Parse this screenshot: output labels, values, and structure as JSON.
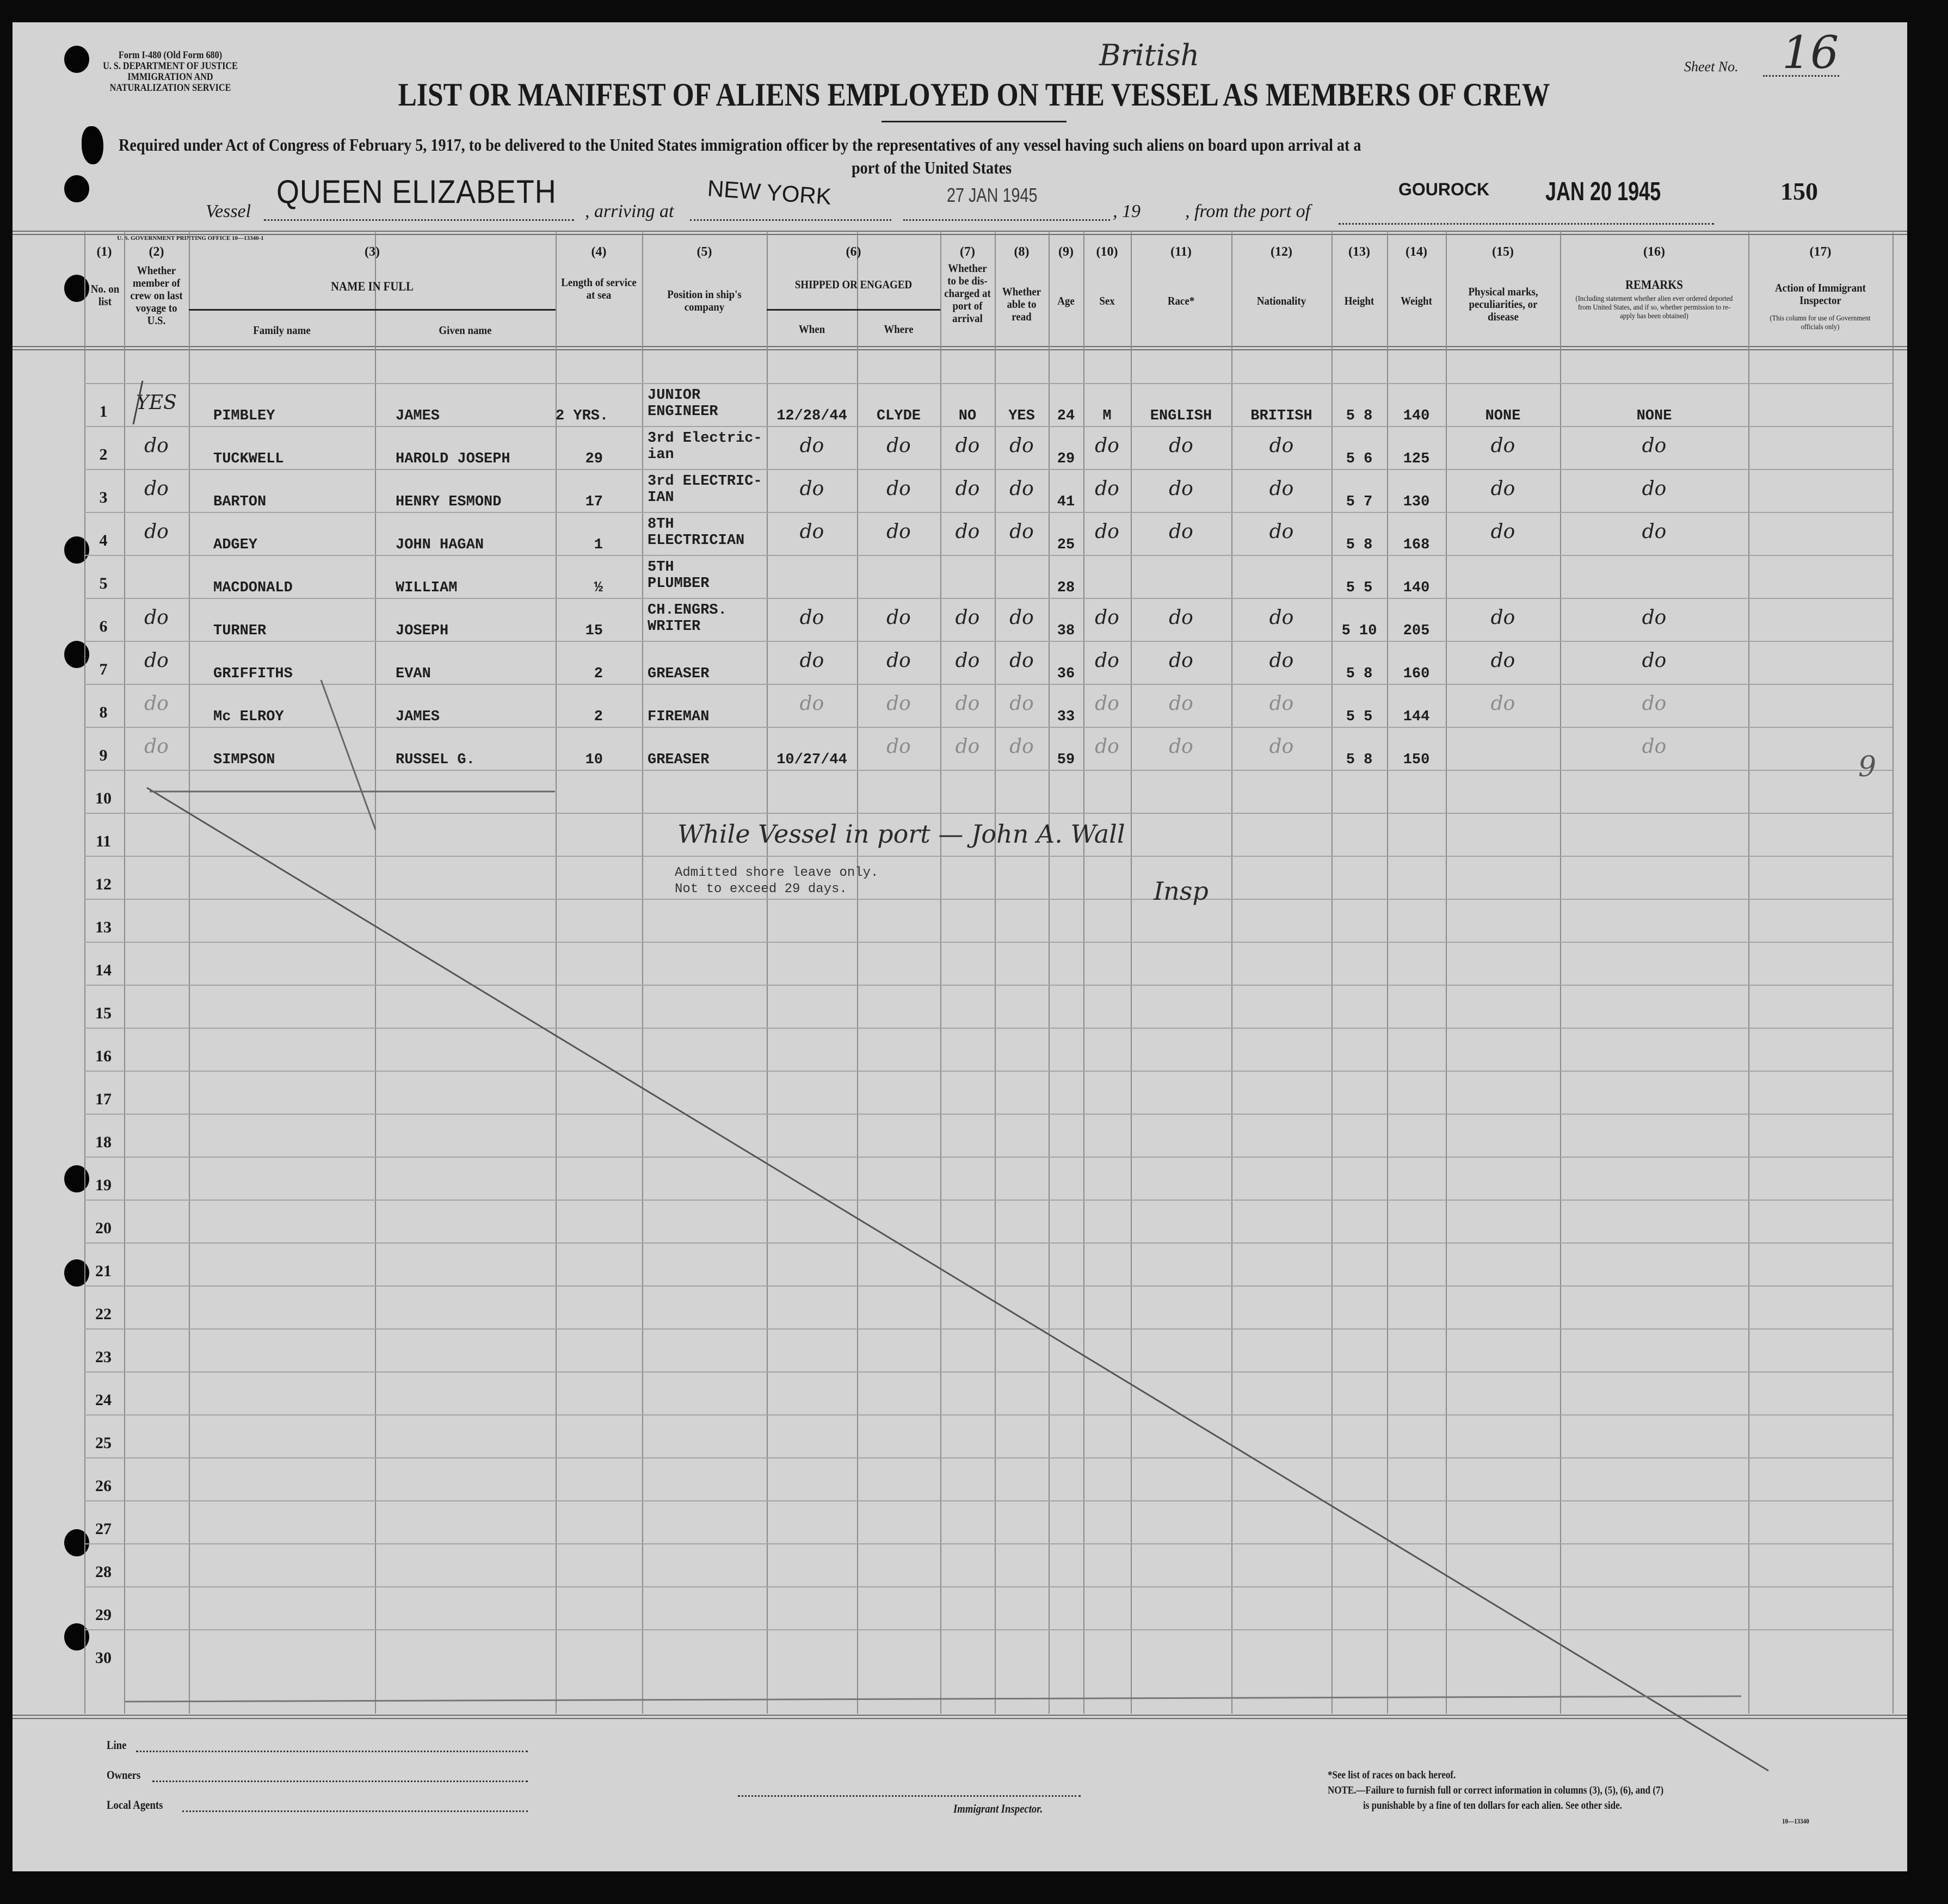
{
  "form": {
    "form_id": "Form I-480 (Old Form 680)",
    "department": "U. S. DEPARTMENT OF JUSTICE",
    "service": "IMMIGRATION AND NATURALIZATION SERVICE",
    "title": "LIST OR MANIFEST OF ALIENS EMPLOYED ON THE VESSEL AS MEMBERS OF CREW",
    "handwritten_flag": "British",
    "sheet_label": "Sheet No.",
    "sheet_no": "16",
    "subtitle_line1": "Required under Act of Congress of February 5, 1917, to be delivered to the United States immigration officer by the representatives of any vessel having such aliens on board upon arrival at a",
    "subtitle_line2": "port of the United States",
    "vessel_label": "Vessel",
    "vessel": "QUEEN ELIZABETH",
    "arriving_label": ", arriving at",
    "arriving_at": "NEW YORK",
    "arrival_date": "27 JAN 1945",
    "year_label": ", 19",
    "from_port_label": ", from the port of",
    "from_port": "GOUROCK",
    "departure_stamp": "JAN 20 1945",
    "stamp_number": "150",
    "printing_office": "U. S. GOVERNMENT PRINTING OFFICE    10—13340-1"
  },
  "columns": {
    "nums": [
      "(1)",
      "(2)",
      "(3)",
      "(4)",
      "(5)",
      "(6)",
      "(7)",
      "(8)",
      "(9)",
      "(10)",
      "(11)",
      "(12)",
      "(13)",
      "(14)",
      "(15)",
      "(16)",
      "(17)"
    ],
    "no_on_list": "No. on list",
    "member_last_voyage": "Whether member of crew on last voyage to U.S.",
    "name_in_full": "NAME IN FULL",
    "family_name": "Family name",
    "given_name": "Given name",
    "length_of_service": "Length of service at sea",
    "position": "Position in ship's company",
    "shipped_or_engaged": "SHIPPED OR ENGAGED",
    "when": "When",
    "where": "Where",
    "discharged": "Whether to be dis-charged at port of arrival",
    "able_to_read": "Whether able to read",
    "age": "Age",
    "sex": "Sex",
    "race": "Race*",
    "nationality": "Nationality",
    "height": "Height",
    "weight": "Weight",
    "physical_marks": "Physical marks, peculiarities, or disease",
    "remarks_title": "REMARKS",
    "remarks_note": "(Including statement whether alien ever ordered deported from United States, and if so, whether permission to re-apply has been obtained)",
    "action_title": "Action of Immigrant Inspector",
    "action_note": "(This column for use of Government officials only)"
  },
  "row_numbers": [
    "1",
    "2",
    "3",
    "4",
    "5",
    "6",
    "7",
    "8",
    "9",
    "10",
    "11",
    "12",
    "13",
    "14",
    "15",
    "16",
    "17",
    "18",
    "19",
    "20",
    "21",
    "22",
    "23",
    "24",
    "25",
    "26",
    "27",
    "28",
    "29",
    "30"
  ],
  "rows": [
    {
      "member": "YES",
      "family": "PIMBLEY",
      "given": "JAMES",
      "length": "2 YRS.",
      "position": "JUNIOR\nENGINEER",
      "when": "12/28/44",
      "where": "CLYDE",
      "discharged": "NO",
      "read": "YES",
      "age": "24",
      "sex": "M",
      "race": "ENGLISH",
      "nationality": "BRITISH",
      "height": "5 8",
      "weight": "140",
      "physical": "NONE",
      "remarks": "NONE"
    },
    {
      "member": "do",
      "family": "TUCKWELL",
      "given": "HAROLD JOSEPH",
      "length": "29",
      "position": "3rd Electric-\nian",
      "when": "do",
      "where": "do",
      "discharged": "do",
      "read": "do",
      "age": "29",
      "sex": "do",
      "race": "do",
      "nationality": "do",
      "height": "5 6",
      "weight": "125",
      "physical": "do",
      "remarks": "do"
    },
    {
      "member": "do",
      "family": "BARTON",
      "given": "HENRY ESMOND",
      "length": "17",
      "position": "3rd ELECTRIC-\nIAN",
      "when": "do",
      "where": "do",
      "discharged": "do",
      "read": "do",
      "age": "41",
      "sex": "do",
      "race": "do",
      "nationality": "do",
      "height": "5 7",
      "weight": "130",
      "physical": "do",
      "remarks": "do"
    },
    {
      "member": "do",
      "family": "ADGEY",
      "given": "JOHN HAGAN",
      "length": "1",
      "position": "8TH\nELECTRICIAN",
      "when": "do",
      "where": "do",
      "discharged": "do",
      "read": "do",
      "age": "25",
      "sex": "do",
      "race": "do",
      "nationality": "do",
      "height": "5 8",
      "weight": "168",
      "physical": "do",
      "remarks": "do"
    },
    {
      "member": "",
      "family": "MACDONALD",
      "given": "WILLIAM",
      "length": "½",
      "position": "5TH\nPLUMBER",
      "when": "",
      "where": "",
      "discharged": "",
      "read": "",
      "age": "28",
      "sex": "",
      "race": "",
      "nationality": "",
      "height": "5 5",
      "weight": "140",
      "physical": "",
      "remarks": ""
    },
    {
      "member": "do",
      "family": "TURNER",
      "given": "JOSEPH",
      "length": "15",
      "position": "CH.ENGRS.\nWRITER",
      "when": "do",
      "where": "do",
      "discharged": "do",
      "read": "do",
      "age": "38",
      "sex": "do",
      "race": "do",
      "nationality": "do",
      "height": "5 10",
      "weight": "205",
      "physical": "do",
      "remarks": "do"
    },
    {
      "member": "do",
      "family": "GRIFFITHS",
      "given": "EVAN",
      "length": "2",
      "position": "GREASER",
      "when": "do",
      "where": "do",
      "discharged": "do",
      "read": "do",
      "age": "36",
      "sex": "do",
      "race": "do",
      "nationality": "do",
      "height": "5 8",
      "weight": "160",
      "physical": "do",
      "remarks": "do"
    },
    {
      "member": "do",
      "family": "Mc ELROY",
      "given": "JAMES",
      "length": "2",
      "position": "FIREMAN",
      "when": "do",
      "where": "do",
      "discharged": "do",
      "read": "do",
      "age": "33",
      "sex": "do",
      "race": "do",
      "nationality": "do",
      "height": "5 5",
      "weight": "144",
      "physical": "do",
      "remarks": "do"
    },
    {
      "member": "do",
      "family": "SIMPSON",
      "given": "RUSSEL G.",
      "length": "10",
      "position": "GREASER",
      "when": "10/27/44",
      "where": "do",
      "discharged": "do",
      "read": "do",
      "age": "59",
      "sex": "do",
      "race": "do",
      "nationality": "do",
      "height": "5 8",
      "weight": "150",
      "physical": "",
      "remarks": "do"
    }
  ],
  "annotations": {
    "handwritten_note": "While Vessel in port — John A. Wall",
    "handwritten_title": "Insp",
    "typed_line1": "Admitted shore leave only.",
    "typed_line2": "Not to exceed 29 days.",
    "margin_count": "9"
  },
  "footer": {
    "line_label": "Line",
    "owners_label": "Owners",
    "agents_label": "Local Agents",
    "inspector_label": "Immigrant Inspector.",
    "races_note": "*See list of races on back hereof.",
    "note_line1": "NOTE.—Failure to furnish full or correct information in columns (3), (5), (6), and (7)",
    "note_line2": "is punishable by a fine of ten dollars for each alien.  See other side.",
    "form_code": "10—13340"
  }
}
